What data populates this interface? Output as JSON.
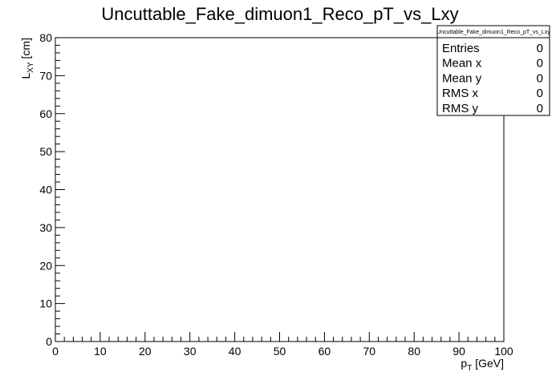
{
  "chart_data": {
    "type": "heatmap",
    "title": "Uncuttable_Fake_dimuon1_Reco_pT_vs_Lxy",
    "xlabel": {
      "main": "p",
      "sub": "T",
      "unit": " [GeV]"
    },
    "ylabel": {
      "main": "L",
      "sub": "XY",
      "unit": " [cm]"
    },
    "xlim": [
      0,
      100
    ],
    "ylim": [
      0,
      80
    ],
    "x_ticks": [
      0,
      10,
      20,
      30,
      40,
      50,
      60,
      70,
      80,
      90,
      100
    ],
    "y_ticks": [
      0,
      10,
      20,
      30,
      40,
      50,
      60,
      70,
      80
    ],
    "values": [],
    "grid": false,
    "stats_box": {
      "title": "Uncuttable_Fake_dimuon1_Reco_pT_vs_Lxy",
      "placement": "top-right",
      "rows": [
        {
          "label": "Entries",
          "value": "0"
        },
        {
          "label": "Mean x",
          "value": "0"
        },
        {
          "label": "Mean y",
          "value": "0"
        },
        {
          "label": "RMS x",
          "value": "0"
        },
        {
          "label": "RMS y",
          "value": "0"
        }
      ]
    }
  }
}
